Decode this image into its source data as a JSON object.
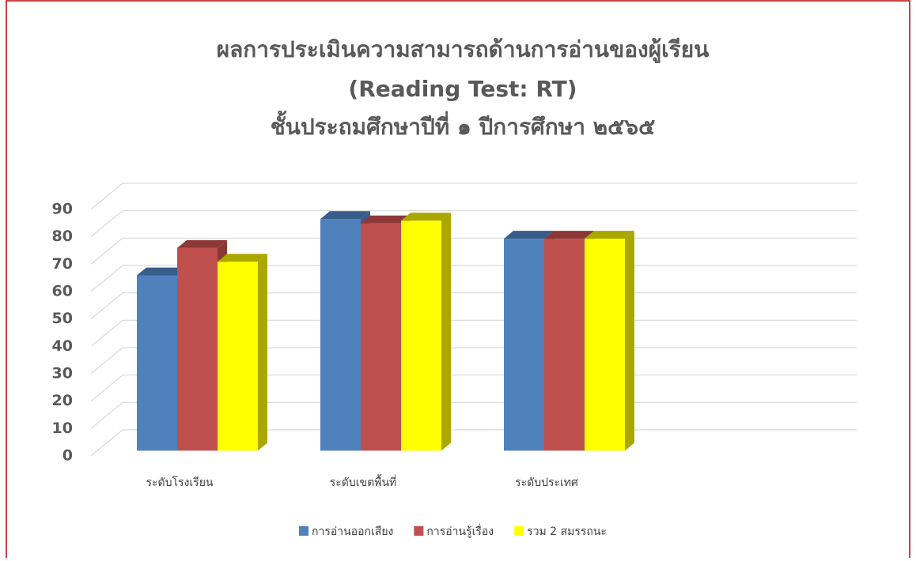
{
  "chart_data": {
    "type": "bar3d",
    "title": [
      "ผลการประเมินความสามารถด้านการอ่านของผู้เรียน",
      "(Reading Test: RT)",
      "ชั้นประถมศึกษาปีที่ ๑ ปีการศึกษา ๒๕๖๕"
    ],
    "categories": [
      "ระดับโรงเรียน",
      "ระดับเขตพื้นที่",
      "ระดับประเทศ",
      null
    ],
    "series": [
      {
        "name": "การอ่านออกเสียง",
        "color": "#4f81bd",
        "side": "#385d8a",
        "values": [
          64,
          84.6,
          77.4,
          null
        ]
      },
      {
        "name": "การอ่านรู้เรื่อง",
        "color": "#c0504d",
        "side": "#8c3836",
        "values": [
          74,
          83,
          77.4,
          null
        ]
      },
      {
        "name": "รวม 2 สมรรถนะ",
        "color": "#ffff00",
        "side": "#aaa800",
        "values": [
          69,
          84,
          77.4,
          null
        ]
      }
    ],
    "ylim": [
      0,
      90
    ],
    "yticks": [
      0,
      10,
      20,
      30,
      40,
      50,
      60,
      70,
      80,
      90
    ],
    "grid": true,
    "legend": "bottom"
  }
}
